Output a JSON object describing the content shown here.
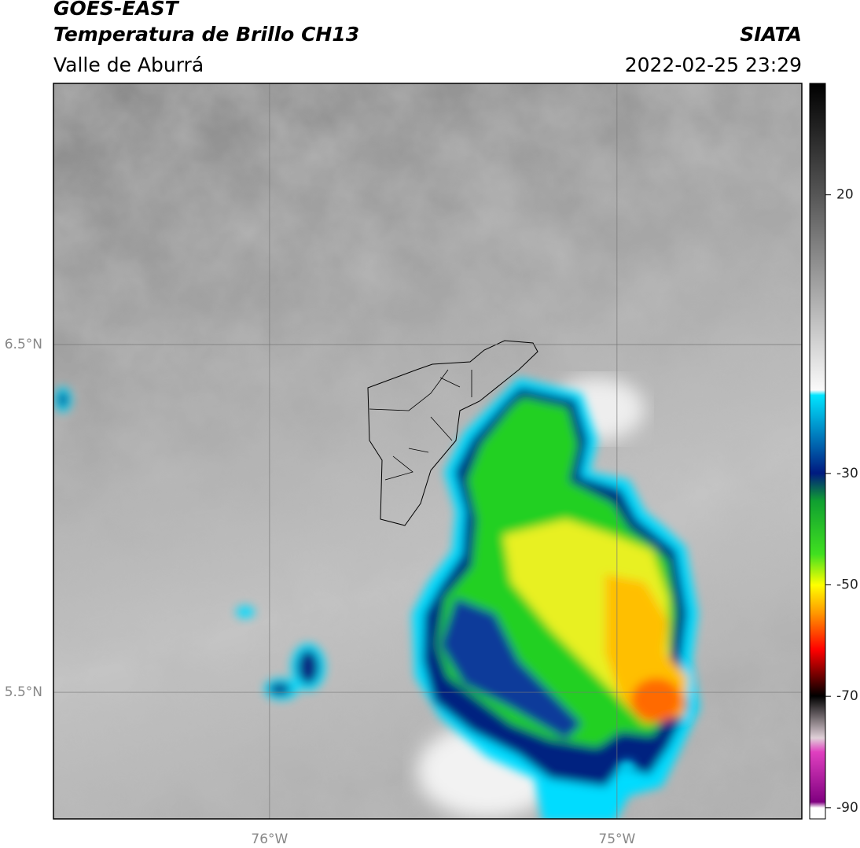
{
  "header": {
    "title": "GOES-EAST",
    "subtitle": "Temperatura de Brillo CH13",
    "source": "SIATA",
    "region": "Valle de Aburrá",
    "timestamp": "2022-02-25 23:29"
  },
  "map": {
    "xlim": [
      -76.622,
      -74.468
    ],
    "ylim": [
      5.136,
      7.251
    ],
    "xticks": [
      {
        "value": -76,
        "label": "76°W"
      },
      {
        "value": -75,
        "label": "75°W"
      }
    ],
    "yticks": [
      {
        "value": 6.5,
        "label": "6.5°N"
      },
      {
        "value": 5.5,
        "label": "5.5°N"
      }
    ]
  },
  "colorbar": {
    "ylim": [
      -92,
      40
    ],
    "yticks": [
      20,
      -30,
      -50,
      -70,
      -90
    ]
  }
}
